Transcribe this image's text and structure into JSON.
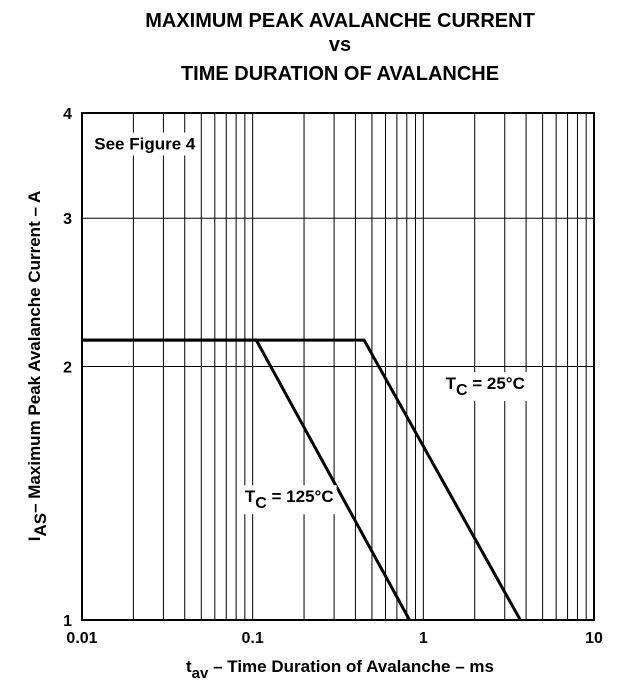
{
  "chart_data": {
    "type": "line",
    "title_lines": [
      "MAXIMUM PEAK AVALANCHE CURRENT",
      "vs",
      "TIME DURATION OF AVALANCHE"
    ],
    "xlabel": {
      "main": "t",
      "sub": "av",
      "rest": " – Time Duration of Avalanche – ms"
    },
    "ylabel": {
      "main": "I",
      "sub": "AS",
      "rest": "– Maximum Peak Avalanche Current – A"
    },
    "x_scale": "log",
    "y_scale": "log",
    "xlim": [
      0.01,
      10
    ],
    "ylim": [
      1,
      4
    ],
    "x_ticks": [
      {
        "value": 0.01,
        "label": "0.01"
      },
      {
        "value": 0.1,
        "label": "0.1"
      },
      {
        "value": 1,
        "label": "1"
      },
      {
        "value": 10,
        "label": "10"
      }
    ],
    "y_ticks": [
      {
        "value": 1,
        "label": "1"
      },
      {
        "value": 2,
        "label": "2"
      },
      {
        "value": 3,
        "label": "3"
      },
      {
        "value": 4,
        "label": "4"
      }
    ],
    "grid": true,
    "series": [
      {
        "label": {
          "main": "T",
          "sub": "C",
          "rest": " = 25°C"
        },
        "label_at": {
          "x": 1.35,
          "y": 1.88
        },
        "points": [
          [
            0.01,
            2.15
          ],
          [
            0.45,
            2.15
          ],
          [
            3.7,
            1
          ]
        ]
      },
      {
        "label": {
          "main": "T",
          "sub": "C",
          "rest": " = 125°C"
        },
        "label_at": {
          "x": 0.09,
          "y": 1.38
        },
        "points": [
          [
            0.01,
            2.15
          ],
          [
            0.105,
            2.15
          ],
          [
            0.83,
            1
          ]
        ]
      }
    ],
    "annotations": [
      {
        "text": "See Figure 4",
        "x": 0.0118,
        "y": 3.62
      }
    ]
  }
}
